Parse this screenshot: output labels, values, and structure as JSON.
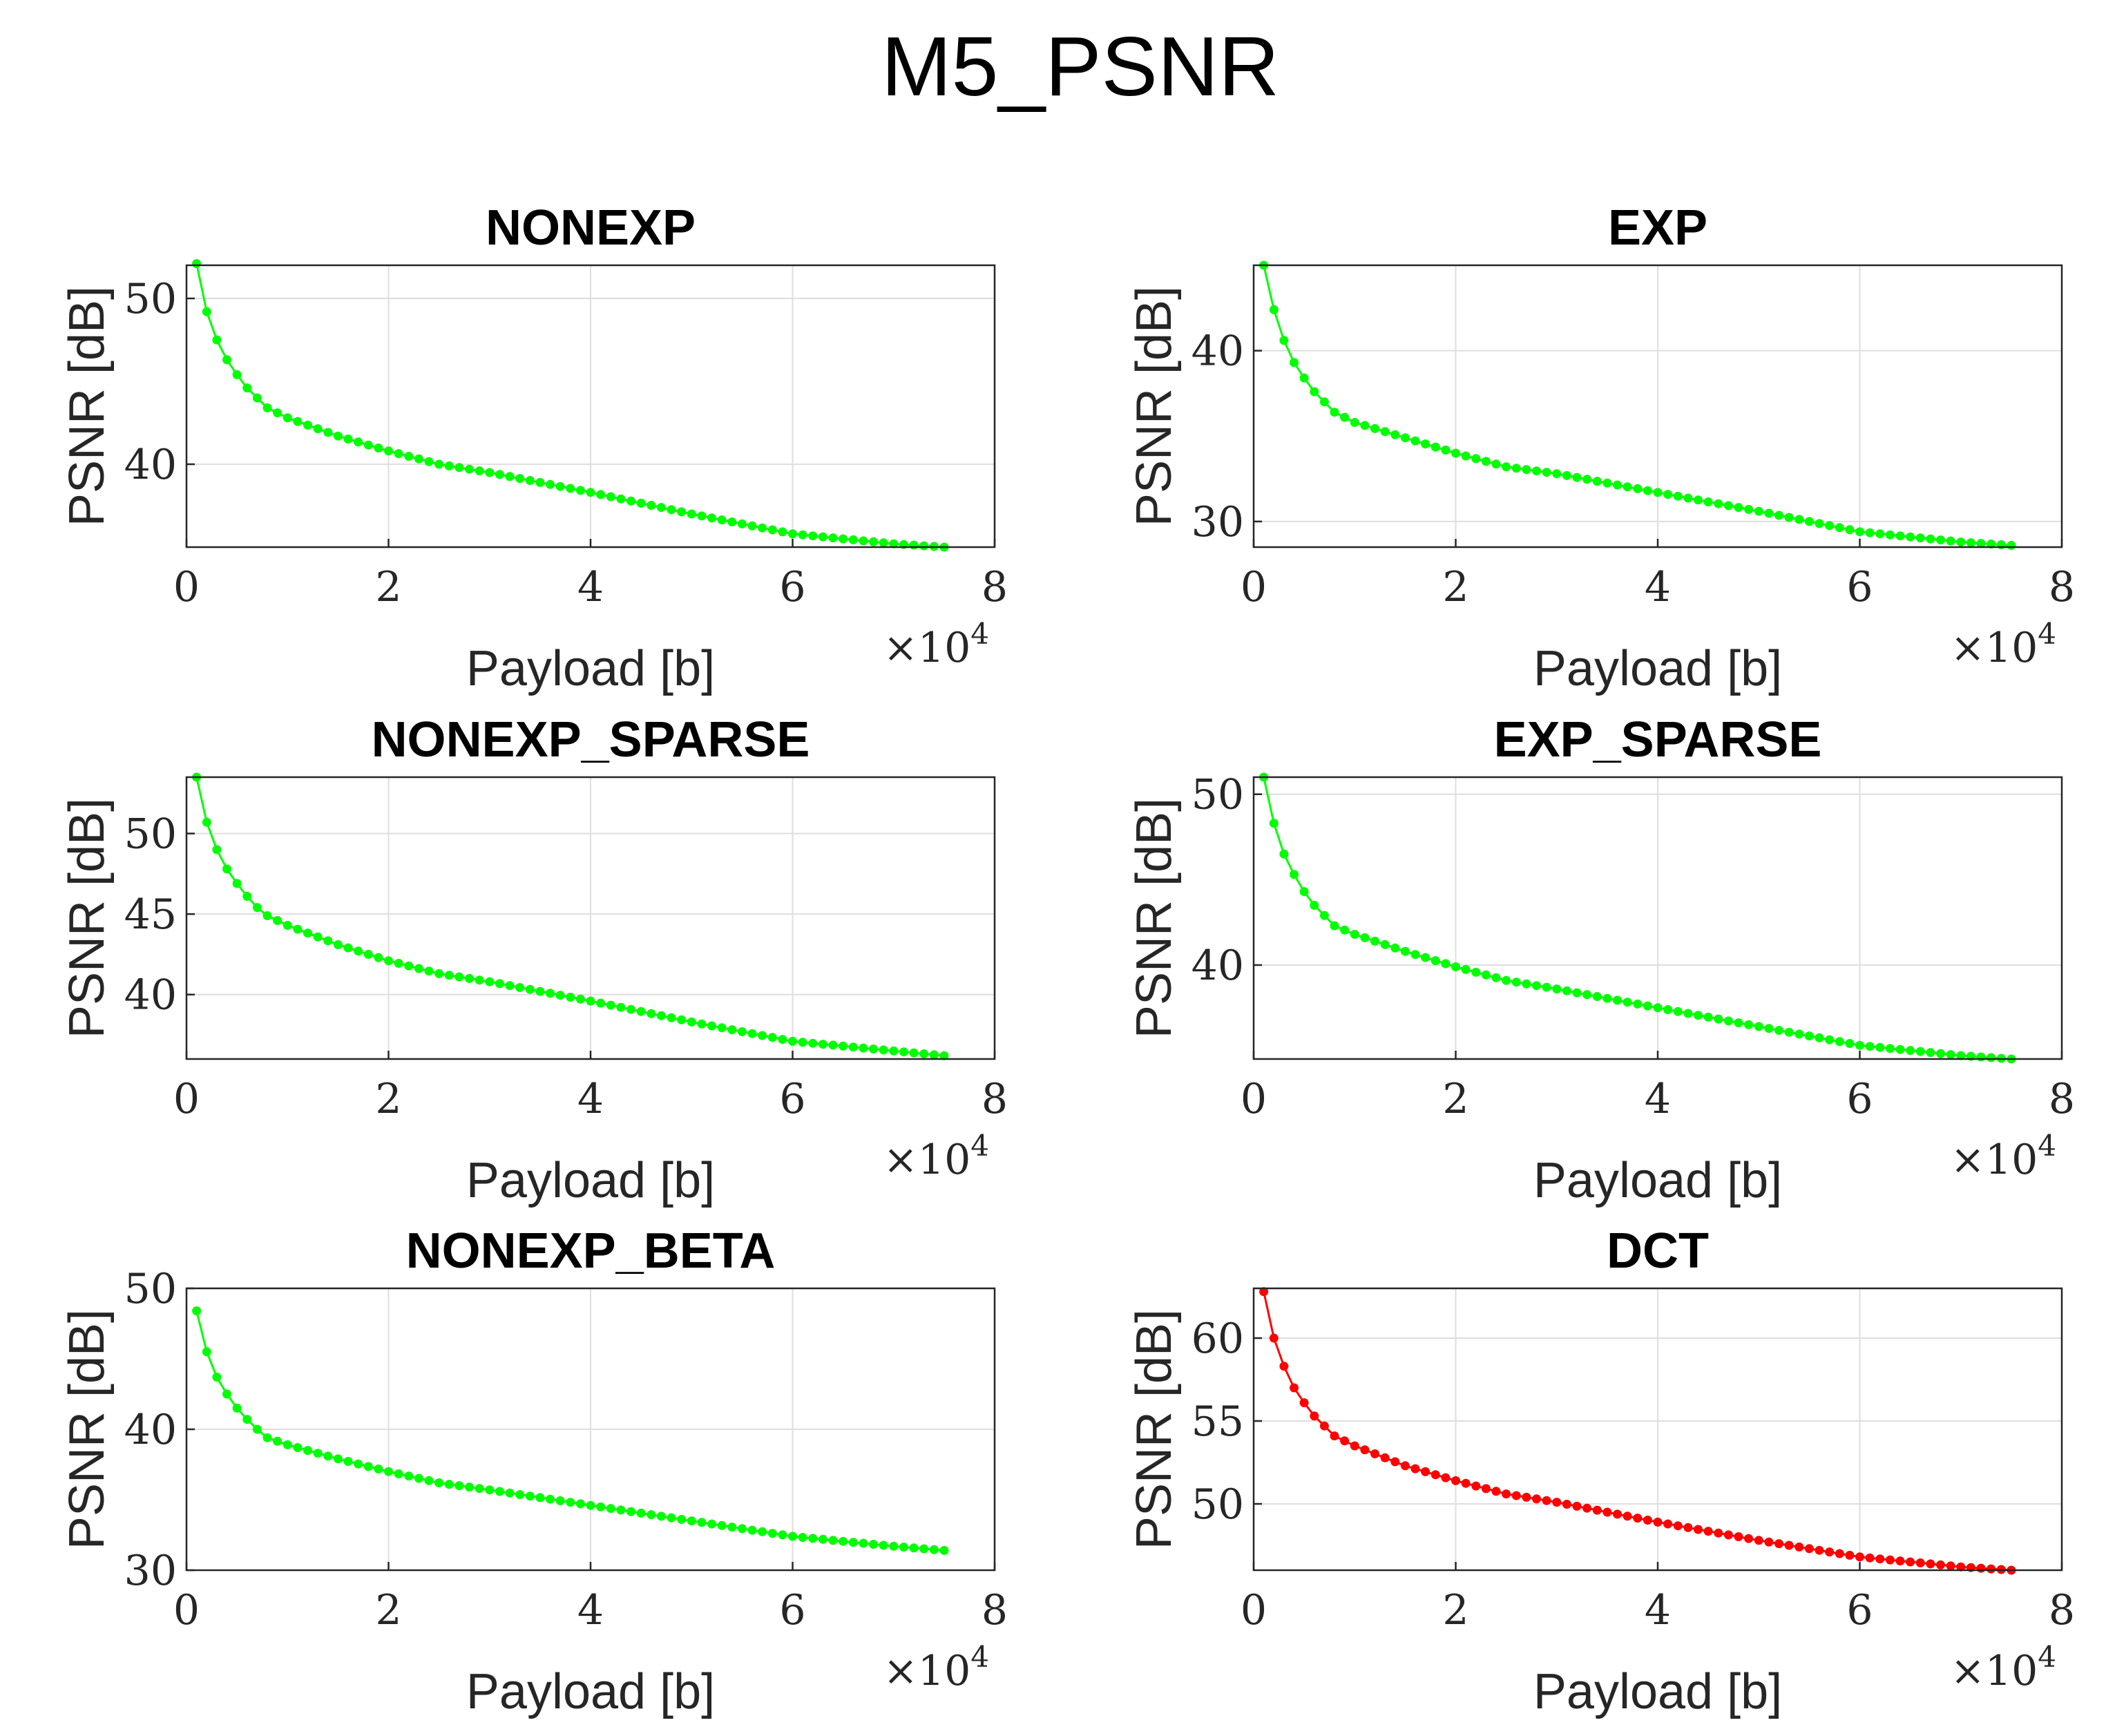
{
  "suptitle": "M5_PSNR",
  "chart_data": [
    {
      "type": "line",
      "title": "NONEXP",
      "xlabel": "Payload [b]",
      "ylabel": "PSNR [dB]",
      "x_multiplier_label": "×10",
      "x_multiplier_exp": "4",
      "xlim": [
        0,
        8
      ],
      "ylim": [
        35,
        52
      ],
      "xticks": [
        0,
        2,
        4,
        6,
        8
      ],
      "yticks": [
        40,
        50
      ],
      "color": "#00ff00",
      "grid": true,
      "series": [
        {
          "name": "NONEXP",
          "key_points": [
            [
              0.1,
              52.1
            ],
            [
              0.2,
              49.2
            ],
            [
              0.3,
              47.5
            ],
            [
              0.4,
              46.3
            ],
            [
              0.5,
              45.4
            ],
            [
              0.6,
              44.6
            ],
            [
              0.7,
              44.0
            ],
            [
              0.8,
              43.4
            ],
            [
              1.0,
              42.8
            ],
            [
              1.5,
              41.7
            ],
            [
              2.0,
              40.8
            ],
            [
              2.5,
              40.0
            ],
            [
              3.0,
              39.5
            ],
            [
              4.0,
              38.3
            ],
            [
              5.0,
              37.0
            ],
            [
              6.0,
              35.8
            ],
            [
              7.0,
              35.2
            ],
            [
              7.5,
              35.0
            ]
          ]
        }
      ]
    },
    {
      "type": "line",
      "title": "EXP",
      "xlabel": "Payload [b]",
      "ylabel": "PSNR [dB]",
      "x_multiplier_label": "×10",
      "x_multiplier_exp": "4",
      "xlim": [
        0,
        8
      ],
      "ylim": [
        28.5,
        45
      ],
      "xticks": [
        0,
        2,
        4,
        6,
        8
      ],
      "yticks": [
        30,
        40
      ],
      "color": "#00ff00",
      "grid": true,
      "series": [
        {
          "name": "EXP",
          "key_points": [
            [
              0.1,
              45.0
            ],
            [
              0.2,
              42.4
            ],
            [
              0.3,
              40.6
            ],
            [
              0.4,
              39.3
            ],
            [
              0.5,
              38.4
            ],
            [
              0.6,
              37.6
            ],
            [
              0.7,
              37.0
            ],
            [
              0.8,
              36.4
            ],
            [
              1.0,
              35.8
            ],
            [
              1.5,
              34.9
            ],
            [
              2.0,
              34.0
            ],
            [
              2.5,
              33.2
            ],
            [
              3.0,
              32.8
            ],
            [
              4.0,
              31.7
            ],
            [
              5.0,
              30.6
            ],
            [
              6.0,
              29.4
            ],
            [
              7.0,
              28.8
            ],
            [
              7.5,
              28.6
            ]
          ]
        }
      ]
    },
    {
      "type": "line",
      "title": "NONEXP_SPARSE",
      "xlabel": "Payload [b]",
      "ylabel": "PSNR [dB]",
      "x_multiplier_label": "×10",
      "x_multiplier_exp": "4",
      "xlim": [
        0,
        8
      ],
      "ylim": [
        36,
        53.5
      ],
      "xticks": [
        0,
        2,
        4,
        6,
        8
      ],
      "yticks": [
        40,
        45,
        50
      ],
      "color": "#00ff00",
      "grid": true,
      "series": [
        {
          "name": "NONEXP_SPARSE",
          "key_points": [
            [
              0.1,
              53.5
            ],
            [
              0.2,
              50.7
            ],
            [
              0.3,
              49.0
            ],
            [
              0.4,
              47.8
            ],
            [
              0.5,
              46.9
            ],
            [
              0.6,
              46.1
            ],
            [
              0.7,
              45.4
            ],
            [
              0.8,
              44.9
            ],
            [
              1.0,
              44.3
            ],
            [
              1.5,
              43.1
            ],
            [
              2.0,
              42.1
            ],
            [
              2.5,
              41.3
            ],
            [
              3.0,
              40.8
            ],
            [
              4.0,
              39.6
            ],
            [
              5.0,
              38.3
            ],
            [
              6.0,
              37.1
            ],
            [
              7.0,
              36.5
            ],
            [
              7.5,
              36.2
            ]
          ]
        }
      ]
    },
    {
      "type": "line",
      "title": "EXP_SPARSE",
      "xlabel": "Payload [b]",
      "ylabel": "PSNR [dB]",
      "x_multiplier_label": "×10",
      "x_multiplier_exp": "4",
      "xlim": [
        0,
        8
      ],
      "ylim": [
        34.5,
        51
      ],
      "xticks": [
        0,
        2,
        4,
        6,
        8
      ],
      "yticks": [
        40,
        50
      ],
      "color": "#00ff00",
      "grid": true,
      "series": [
        {
          "name": "EXP_SPARSE",
          "key_points": [
            [
              0.1,
              51.0
            ],
            [
              0.2,
              48.3
            ],
            [
              0.3,
              46.5
            ],
            [
              0.4,
              45.3
            ],
            [
              0.5,
              44.3
            ],
            [
              0.6,
              43.5
            ],
            [
              0.7,
              42.9
            ],
            [
              0.8,
              42.3
            ],
            [
              1.0,
              41.8
            ],
            [
              1.5,
              40.8
            ],
            [
              2.0,
              39.9
            ],
            [
              2.5,
              39.1
            ],
            [
              3.0,
              38.6
            ],
            [
              4.0,
              37.5
            ],
            [
              5.0,
              36.4
            ],
            [
              6.0,
              35.3
            ],
            [
              7.0,
              34.7
            ],
            [
              7.5,
              34.5
            ]
          ]
        }
      ]
    },
    {
      "type": "line",
      "title": "NONEXP_BETA",
      "xlabel": "Payload [b]",
      "ylabel": "PSNR [dB]",
      "x_multiplier_label": "×10",
      "x_multiplier_exp": "4",
      "xlim": [
        0,
        8
      ],
      "ylim": [
        30,
        50
      ],
      "xticks": [
        0,
        2,
        4,
        6,
        8
      ],
      "yticks": [
        30,
        40,
        50
      ],
      "color": "#00ff00",
      "grid": true,
      "series": [
        {
          "name": "NONEXP_BETA",
          "key_points": [
            [
              0.1,
              48.4
            ],
            [
              0.2,
              45.5
            ],
            [
              0.3,
              43.7
            ],
            [
              0.4,
              42.5
            ],
            [
              0.5,
              41.5
            ],
            [
              0.6,
              40.7
            ],
            [
              0.7,
              40.0
            ],
            [
              0.8,
              39.4
            ],
            [
              1.0,
              38.9
            ],
            [
              1.5,
              37.9
            ],
            [
              2.0,
              37.0
            ],
            [
              2.5,
              36.2
            ],
            [
              3.0,
              35.7
            ],
            [
              4.0,
              34.6
            ],
            [
              5.0,
              33.5
            ],
            [
              6.0,
              32.4
            ],
            [
              7.0,
              31.7
            ],
            [
              7.5,
              31.4
            ]
          ]
        }
      ]
    },
    {
      "type": "line",
      "title": "DCT",
      "xlabel": "Payload [b]",
      "ylabel": "PSNR [dB]",
      "x_multiplier_label": "×10",
      "x_multiplier_exp": "4",
      "xlim": [
        0,
        8
      ],
      "ylim": [
        46,
        63
      ],
      "xticks": [
        0,
        2,
        4,
        6,
        8
      ],
      "yticks": [
        50,
        55,
        60
      ],
      "color": "#ff0000",
      "grid": true,
      "series": [
        {
          "name": "DCT",
          "key_points": [
            [
              0.1,
              62.8
            ],
            [
              0.2,
              60.0
            ],
            [
              0.3,
              58.3
            ],
            [
              0.4,
              57.0
            ],
            [
              0.5,
              56.1
            ],
            [
              0.6,
              55.3
            ],
            [
              0.7,
              54.7
            ],
            [
              0.8,
              54.1
            ],
            [
              1.0,
              53.5
            ],
            [
              1.5,
              52.3
            ],
            [
              2.0,
              51.4
            ],
            [
              2.5,
              50.6
            ],
            [
              3.0,
              50.1
            ],
            [
              4.0,
              48.9
            ],
            [
              5.0,
              47.8
            ],
            [
              6.0,
              46.8
            ],
            [
              7.0,
              46.2
            ],
            [
              7.5,
              46.0
            ]
          ]
        }
      ]
    }
  ]
}
